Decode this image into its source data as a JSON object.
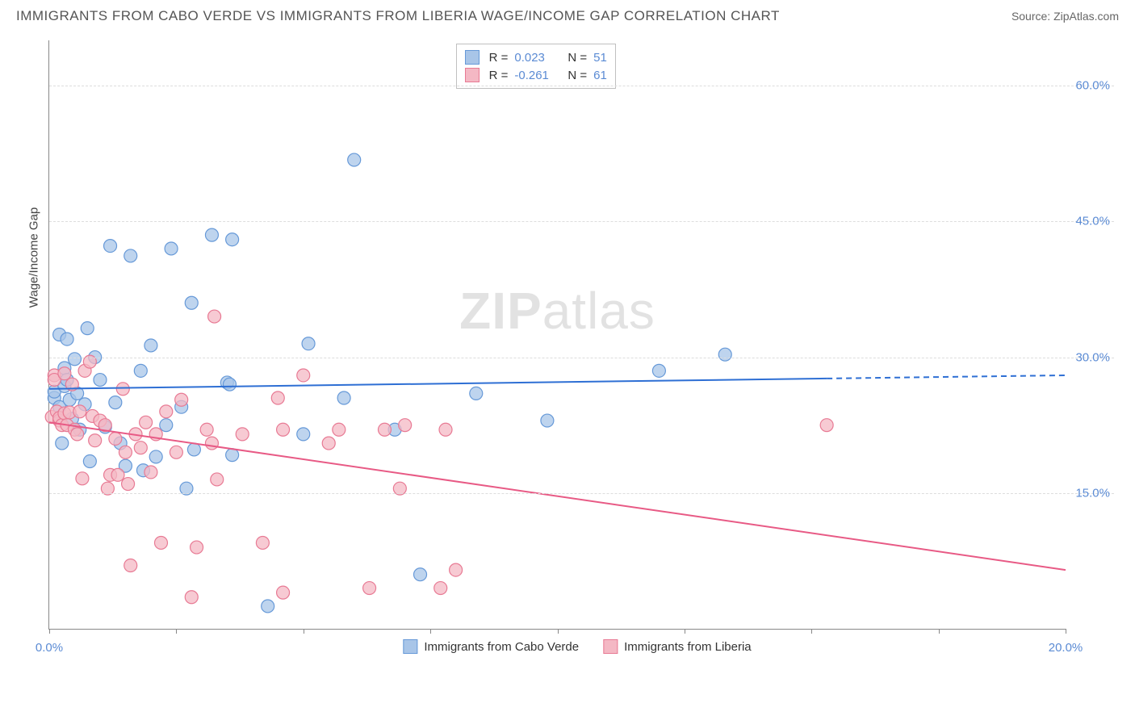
{
  "header": {
    "title": "IMMIGRANTS FROM CABO VERDE VS IMMIGRANTS FROM LIBERIA WAGE/INCOME GAP CORRELATION CHART",
    "source": "Source: ZipAtlas.com"
  },
  "chart": {
    "type": "scatter",
    "y_axis_label": "Wage/Income Gap",
    "watermark": "ZIPatlas",
    "x_range": [
      0,
      20
    ],
    "y_range": [
      0,
      65
    ],
    "y_ticks": [
      15,
      30,
      45,
      60
    ],
    "y_tick_labels": [
      "15.0%",
      "30.0%",
      "45.0%",
      "60.0%"
    ],
    "x_ticks": [
      0,
      2.5,
      5,
      7.5,
      10,
      12.5,
      15,
      17.5,
      20
    ],
    "x_tick_labels_shown": {
      "0": "0.0%",
      "20": "20.0%"
    },
    "grid_color": "#dddddd",
    "axis_color": "#888888",
    "series": [
      {
        "name": "Immigrants from Cabo Verde",
        "color_fill": "#a8c5e8",
        "color_stroke": "#6699d8",
        "marker_radius": 8,
        "marker_opacity": 0.75,
        "R": "0.023",
        "N": "51",
        "trend": {
          "x1": 0,
          "y1": 26.5,
          "x2": 20,
          "y2": 28.0,
          "solid_until_x": 15.3,
          "stroke": "#2e6fd4",
          "width": 2
        },
        "points": [
          [
            0.1,
            25.5
          ],
          [
            0.1,
            26.2
          ],
          [
            0.2,
            32.5
          ],
          [
            0.2,
            24.5
          ],
          [
            0.25,
            20.5
          ],
          [
            0.3,
            28.8
          ],
          [
            0.3,
            26.8
          ],
          [
            0.35,
            27.5
          ],
          [
            0.35,
            32.0
          ],
          [
            0.4,
            25.3
          ],
          [
            0.45,
            23.2
          ],
          [
            0.5,
            29.8
          ],
          [
            0.55,
            26.0
          ],
          [
            0.6,
            22.0
          ],
          [
            0.7,
            24.8
          ],
          [
            0.75,
            33.2
          ],
          [
            0.8,
            18.5
          ],
          [
            0.9,
            30.0
          ],
          [
            1.0,
            27.5
          ],
          [
            1.1,
            22.3
          ],
          [
            1.2,
            42.3
          ],
          [
            1.3,
            25.0
          ],
          [
            1.4,
            20.5
          ],
          [
            1.5,
            18.0
          ],
          [
            1.6,
            41.2
          ],
          [
            1.8,
            28.5
          ],
          [
            1.85,
            17.5
          ],
          [
            2.0,
            31.3
          ],
          [
            2.1,
            19.0
          ],
          [
            2.3,
            22.5
          ],
          [
            2.4,
            42.0
          ],
          [
            2.6,
            24.5
          ],
          [
            2.7,
            15.5
          ],
          [
            2.8,
            36.0
          ],
          [
            2.85,
            19.8
          ],
          [
            3.2,
            43.5
          ],
          [
            3.5,
            27.2
          ],
          [
            3.55,
            27.0
          ],
          [
            3.6,
            43.0
          ],
          [
            3.6,
            19.2
          ],
          [
            4.3,
            2.5
          ],
          [
            5.0,
            21.5
          ],
          [
            5.1,
            31.5
          ],
          [
            5.8,
            25.5
          ],
          [
            6.0,
            51.8
          ],
          [
            6.8,
            22.0
          ],
          [
            7.3,
            6.0
          ],
          [
            8.4,
            26.0
          ],
          [
            9.8,
            23.0
          ],
          [
            12.0,
            28.5
          ],
          [
            13.3,
            30.3
          ]
        ]
      },
      {
        "name": "Immigrants from Liberia",
        "color_fill": "#f4b8c4",
        "color_stroke": "#e87a94",
        "marker_radius": 8,
        "marker_opacity": 0.75,
        "R": "-0.261",
        "N": "61",
        "trend": {
          "x1": 0,
          "y1": 22.8,
          "x2": 20,
          "y2": 6.5,
          "solid_until_x": 20,
          "stroke": "#e85a85",
          "width": 2
        },
        "points": [
          [
            0.05,
            23.4
          ],
          [
            0.1,
            28.0
          ],
          [
            0.1,
            27.5
          ],
          [
            0.15,
            24.0
          ],
          [
            0.2,
            23.0
          ],
          [
            0.2,
            23.3
          ],
          [
            0.25,
            22.5
          ],
          [
            0.3,
            23.8
          ],
          [
            0.3,
            28.2
          ],
          [
            0.35,
            22.5
          ],
          [
            0.4,
            23.9
          ],
          [
            0.45,
            27.0
          ],
          [
            0.5,
            22.0
          ],
          [
            0.55,
            21.5
          ],
          [
            0.6,
            24.0
          ],
          [
            0.65,
            16.6
          ],
          [
            0.7,
            28.5
          ],
          [
            0.8,
            29.5
          ],
          [
            0.85,
            23.5
          ],
          [
            0.9,
            20.8
          ],
          [
            1.0,
            23.0
          ],
          [
            1.1,
            22.5
          ],
          [
            1.15,
            15.5
          ],
          [
            1.2,
            17.0
          ],
          [
            1.3,
            21.0
          ],
          [
            1.35,
            17.0
          ],
          [
            1.45,
            26.5
          ],
          [
            1.5,
            19.5
          ],
          [
            1.55,
            16.0
          ],
          [
            1.6,
            7.0
          ],
          [
            1.7,
            21.5
          ],
          [
            1.8,
            20.0
          ],
          [
            1.9,
            22.8
          ],
          [
            2.0,
            17.3
          ],
          [
            2.1,
            21.5
          ],
          [
            2.2,
            9.5
          ],
          [
            2.3,
            24.0
          ],
          [
            2.5,
            19.5
          ],
          [
            2.6,
            25.3
          ],
          [
            2.8,
            3.5
          ],
          [
            2.9,
            9.0
          ],
          [
            3.1,
            22.0
          ],
          [
            3.2,
            20.5
          ],
          [
            3.25,
            34.5
          ],
          [
            3.3,
            16.5
          ],
          [
            3.8,
            21.5
          ],
          [
            4.2,
            9.5
          ],
          [
            4.5,
            25.5
          ],
          [
            4.6,
            4.0
          ],
          [
            4.6,
            22.0
          ],
          [
            5.0,
            28.0
          ],
          [
            5.5,
            20.5
          ],
          [
            5.7,
            22.0
          ],
          [
            6.3,
            4.5
          ],
          [
            6.6,
            22.0
          ],
          [
            6.9,
            15.5
          ],
          [
            7.0,
            22.5
          ],
          [
            7.7,
            4.5
          ],
          [
            7.8,
            22.0
          ],
          [
            8.0,
            6.5
          ],
          [
            15.3,
            22.5
          ]
        ]
      }
    ]
  },
  "legend_bottom": [
    {
      "label": "Immigrants from Cabo Verde",
      "fill": "#a8c5e8",
      "stroke": "#6699d8"
    },
    {
      "label": "Immigrants from Liberia",
      "fill": "#f4b8c4",
      "stroke": "#e87a94"
    }
  ]
}
